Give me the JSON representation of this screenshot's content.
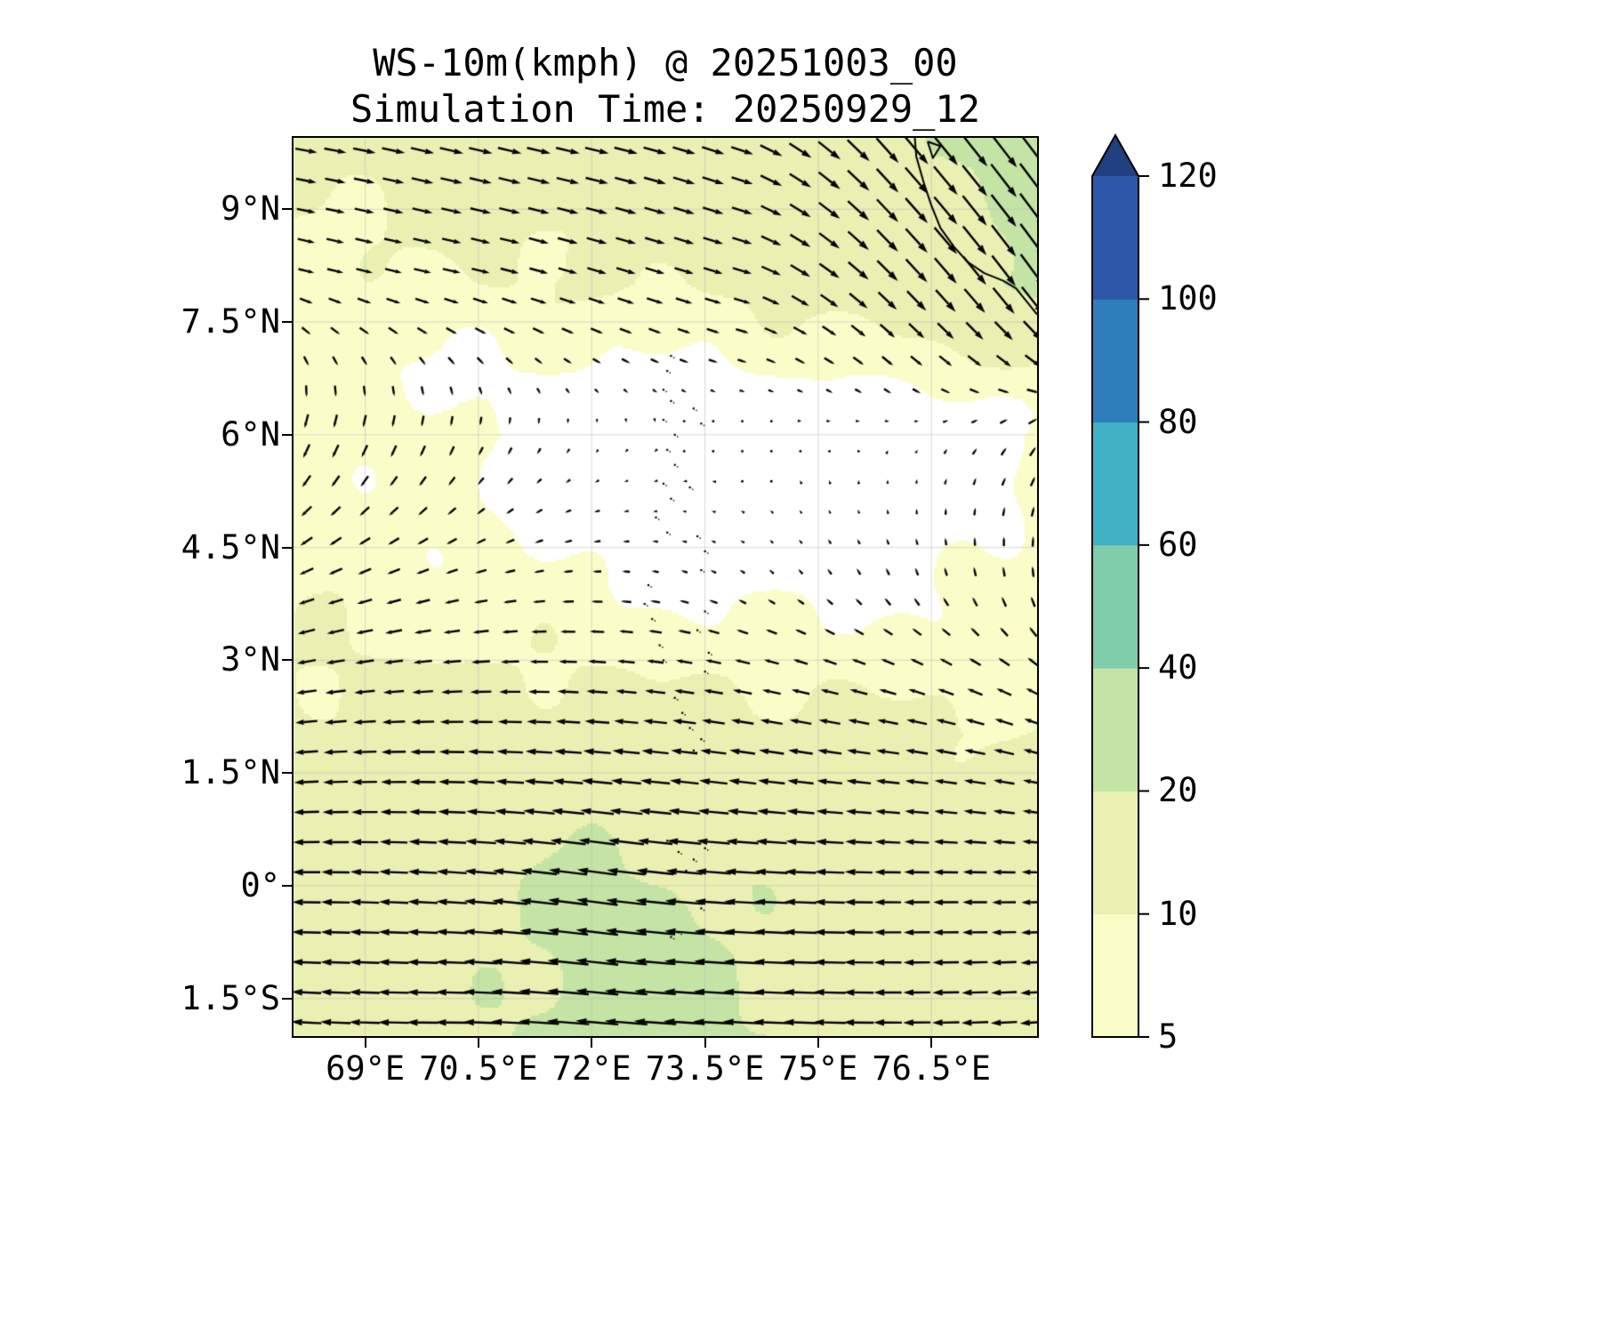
{
  "title": {
    "line1": "WS-10m(kmph) @ 20251003_00",
    "line2": "Simulation Time: 20250929_12"
  },
  "chart_data": {
    "type": "heatmap",
    "subtype": "wind-speed-map-with-quiver",
    "variable": "WS-10m",
    "units": "kmph",
    "valid_time": "20251003_00",
    "simulation_time": "20250929_12",
    "x": {
      "tick_labels": [
        "69°E",
        "70.5°E",
        "72°E",
        "73.5°E",
        "75°E",
        "76.5°E"
      ],
      "tick_values": [
        69,
        70.5,
        72,
        73.5,
        75,
        76.5
      ],
      "range": [
        68.05,
        77.9
      ]
    },
    "y": {
      "tick_labels": [
        "9°N",
        "7.5°N",
        "6°N",
        "4.5°N",
        "3°N",
        "1.5°N",
        "0°",
        "1.5°S"
      ],
      "tick_values": [
        9,
        7.5,
        6,
        4.5,
        3,
        1.5,
        0,
        -1.5
      ],
      "range": [
        -2.0,
        9.95
      ]
    },
    "grid": true,
    "grid_color": "#c8c8c8",
    "frame_color": "#000000",
    "background_color": "#ffffff",
    "colorbar": {
      "levels": [
        5,
        10,
        20,
        40,
        60,
        80,
        100,
        120
      ],
      "labels": [
        "5",
        "10",
        "20",
        "40",
        "60",
        "80",
        "100",
        "120"
      ],
      "colors": [
        "#fbfdc9",
        "#e9f0b2",
        "#c3e4a4",
        "#7fcdaa",
        "#42b1c5",
        "#2e7ebc",
        "#2b58a8"
      ],
      "extend_color": "#20407f",
      "under_color": "#ffffff",
      "position": "right"
    },
    "wind_field": {
      "units": "kmph",
      "lons": [
        68,
        70,
        72,
        74,
        76,
        78
      ],
      "lats": [
        -2,
        0,
        2,
        4,
        6,
        8,
        10
      ],
      "u": [
        [
          -16,
          -17,
          -24,
          -21,
          -15,
          -14
        ],
        [
          -15,
          -16,
          -22,
          -19,
          -14,
          -12
        ],
        [
          -12,
          -13,
          -14,
          -13,
          -12,
          -10
        ],
        [
          -8,
          -7,
          -5,
          -3,
          -2,
          -1
        ],
        [
          -3,
          -2,
          -1,
          0,
          1,
          4
        ],
        [
          8,
          9,
          10,
          10,
          11,
          13
        ],
        [
          12,
          13,
          13,
          12,
          12,
          15
        ]
      ],
      "v": [
        [
          1,
          0,
          2,
          1,
          0,
          -1
        ],
        [
          0,
          1,
          3,
          1,
          0,
          0
        ],
        [
          -1,
          0,
          1,
          2,
          2,
          3
        ],
        [
          -3,
          -2,
          0,
          2,
          4,
          6
        ],
        [
          -8,
          -6,
          -2,
          0,
          1,
          5
        ],
        [
          -2,
          -2,
          -3,
          -3,
          -11,
          -18
        ],
        [
          -2,
          -3,
          -3,
          -4,
          -14,
          -20
        ]
      ]
    },
    "arrow_spacing_deg": {
      "lon": 0.385,
      "lat": 0.4
    },
    "map_features": {
      "coastline": [
        [
          76.28,
          9.95
        ],
        [
          76.3,
          9.7
        ],
        [
          76.4,
          9.35
        ],
        [
          76.5,
          9.05
        ],
        [
          76.62,
          8.75
        ],
        [
          76.8,
          8.5
        ],
        [
          76.98,
          8.3
        ],
        [
          77.2,
          8.15
        ],
        [
          77.45,
          8.05
        ],
        [
          77.62,
          7.95
        ],
        [
          77.78,
          7.75
        ],
        [
          77.9,
          7.6
        ]
      ],
      "lake": [
        [
          76.45,
          9.9
        ],
        [
          76.52,
          9.68
        ],
        [
          76.62,
          9.84
        ],
        [
          76.45,
          9.9
        ]
      ],
      "atolls": [
        [
          73.05,
          7.05
        ],
        [
          73.0,
          6.85
        ],
        [
          72.95,
          6.6
        ],
        [
          73.05,
          6.45
        ],
        [
          72.95,
          6.2
        ],
        [
          73.1,
          6.0
        ],
        [
          73.35,
          6.35
        ],
        [
          73.45,
          6.15
        ],
        [
          73.0,
          5.8
        ],
        [
          73.1,
          5.6
        ],
        [
          72.95,
          5.35
        ],
        [
          73.05,
          5.15
        ],
        [
          73.3,
          5.3
        ],
        [
          72.85,
          4.9
        ],
        [
          73.0,
          4.7
        ],
        [
          73.4,
          4.65
        ],
        [
          73.5,
          4.45
        ],
        [
          73.45,
          4.2
        ],
        [
          72.75,
          4.0
        ],
        [
          72.7,
          3.75
        ],
        [
          72.8,
          3.55
        ],
        [
          73.5,
          3.65
        ],
        [
          73.4,
          3.4
        ],
        [
          72.9,
          3.2
        ],
        [
          72.95,
          3.0
        ],
        [
          73.55,
          3.1
        ],
        [
          73.5,
          2.85
        ],
        [
          73.1,
          2.5
        ],
        [
          73.2,
          2.3
        ],
        [
          73.3,
          2.1
        ],
        [
          73.45,
          1.95
        ],
        [
          73.35,
          1.8
        ],
        [
          73.0,
          0.6
        ],
        [
          73.15,
          0.45
        ],
        [
          73.35,
          0.35
        ],
        [
          73.5,
          0.5
        ],
        [
          73.25,
          0.2
        ],
        [
          73.45,
          -0.3
        ],
        [
          73.15,
          -0.62
        ],
        [
          73.05,
          -0.68
        ]
      ]
    }
  }
}
